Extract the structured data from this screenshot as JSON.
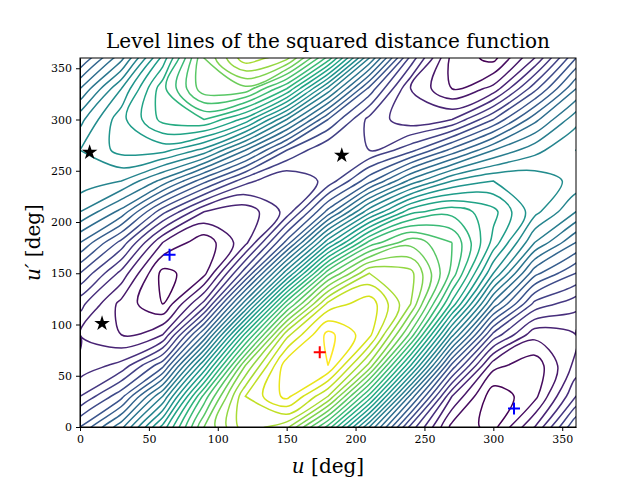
{
  "chart_data": {
    "type": "contour",
    "title": "Level lines of the squared distance function",
    "x_label": "u [deg]",
    "y_label": "u′ [deg]",
    "xlim": [
      0,
      360
    ],
    "ylim": [
      0,
      360
    ],
    "xticks": [
      0,
      50,
      100,
      150,
      200,
      250,
      300,
      350
    ],
    "yticks": [
      0,
      50,
      100,
      150,
      200,
      250,
      300,
      350
    ],
    "color": "viridis",
    "levels": [
      0.05,
      0.08,
      0.11,
      0.14,
      0.17,
      0.2,
      0.23,
      0.26,
      0.29,
      0.32,
      0.35,
      0.38,
      0.41,
      0.44,
      0.47,
      0.5,
      0.53,
      0.56,
      0.59,
      0.62,
      0.65,
      0.68,
      0.71,
      0.74,
      0.77,
      0.8,
      0.83,
      0.86,
      0.89,
      0.92,
      0.95,
      0.98
    ],
    "x": [
      -30,
      0,
      30,
      60,
      90,
      120,
      150,
      180,
      210,
      240,
      270,
      300,
      330,
      360,
      390
    ],
    "y": [
      -30,
      0,
      30,
      60,
      90,
      120,
      150,
      180,
      210,
      240,
      270,
      300,
      330,
      360,
      390
    ],
    "z": [
      [
        0.25,
        0.38,
        0.5,
        0.64,
        0.76,
        0.76,
        0.65,
        0.46,
        0.28,
        0.14,
        0.08,
        0.12,
        0.25,
        0.38,
        0.5
      ],
      [
        0.14,
        0.29,
        0.4,
        0.57,
        0.77,
        0.88,
        0.84,
        0.67,
        0.44,
        0.22,
        0.07,
        0.04,
        0.14,
        0.29,
        0.4
      ],
      [
        0.07,
        0.2,
        0.28,
        0.44,
        0.69,
        0.89,
        0.96,
        0.86,
        0.64,
        0.37,
        0.14,
        0.03,
        0.07,
        0.2,
        0.28
      ],
      [
        0.06,
        0.15,
        0.18,
        0.28,
        0.53,
        0.8,
        0.97,
        0.98,
        0.82,
        0.56,
        0.28,
        0.09,
        0.06,
        0.15,
        0.18
      ],
      [
        0.12,
        0.14,
        0.11,
        0.14,
        0.35,
        0.63,
        0.88,
        0.99,
        0.93,
        0.73,
        0.45,
        0.22,
        0.12,
        0.14,
        0.11
      ],
      [
        0.22,
        0.18,
        0.1,
        0.05,
        0.18,
        0.43,
        0.7,
        0.9,
        0.94,
        0.83,
        0.61,
        0.37,
        0.22,
        0.18,
        0.1
      ],
      [
        0.33,
        0.26,
        0.16,
        0.04,
        0.07,
        0.25,
        0.49,
        0.73,
        0.86,
        0.84,
        0.7,
        0.5,
        0.33,
        0.26,
        0.16
      ],
      [
        0.44,
        0.35,
        0.25,
        0.11,
        0.06,
        0.13,
        0.3,
        0.52,
        0.69,
        0.76,
        0.71,
        0.58,
        0.44,
        0.35,
        0.25
      ],
      [
        0.51,
        0.44,
        0.37,
        0.24,
        0.14,
        0.12,
        0.18,
        0.33,
        0.49,
        0.61,
        0.64,
        0.6,
        0.51,
        0.44,
        0.37
      ],
      [
        0.52,
        0.49,
        0.47,
        0.4,
        0.3,
        0.21,
        0.17,
        0.21,
        0.31,
        0.42,
        0.5,
        0.53,
        0.52,
        0.49,
        0.47
      ],
      [
        0.46,
        0.5,
        0.54,
        0.54,
        0.49,
        0.38,
        0.26,
        0.2,
        0.2,
        0.25,
        0.33,
        0.41,
        0.46,
        0.5,
        0.54
      ],
      [
        0.37,
        0.46,
        0.55,
        0.63,
        0.65,
        0.58,
        0.44,
        0.29,
        0.19,
        0.15,
        0.17,
        0.26,
        0.37,
        0.46,
        0.55
      ],
      [
        0.25,
        0.38,
        0.5,
        0.64,
        0.76,
        0.76,
        0.65,
        0.46,
        0.28,
        0.14,
        0.08,
        0.12,
        0.25,
        0.38,
        0.5
      ],
      [
        0.14,
        0.29,
        0.4,
        0.57,
        0.77,
        0.88,
        0.84,
        0.67,
        0.44,
        0.22,
        0.07,
        0.04,
        0.14,
        0.29,
        0.4
      ],
      [
        0.07,
        0.2,
        0.28,
        0.44,
        0.69,
        0.89,
        0.96,
        0.86,
        0.64,
        0.37,
        0.14,
        0.03,
        0.07,
        0.2,
        0.28
      ]
    ],
    "series": [
      {
        "type": "scatter",
        "marker": "star",
        "color": "#000000",
        "x": [
          16,
          7,
          190
        ],
        "values": [
          101,
          268,
          265
        ]
      },
      {
        "type": "scatter",
        "marker": "plus",
        "color": "#0000ff",
        "x": [
          65,
          315
        ],
        "values": [
          168,
          18
        ]
      },
      {
        "type": "scatter",
        "marker": "plus",
        "color": "#ff0000",
        "x": [
          174
        ],
        "values": [
          73
        ]
      }
    ]
  }
}
